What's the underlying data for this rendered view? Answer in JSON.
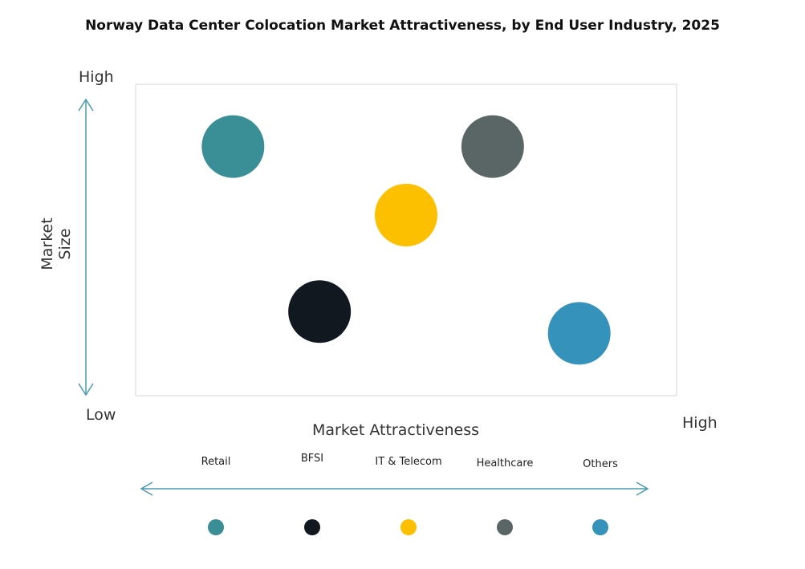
{
  "chart_data": {
    "type": "scatter",
    "title": "Norway Data Center Colocation Market Attractiveness,  by End User Industry, 2025",
    "xlabel": "Market Attractiveness",
    "ylabel": "Market Size",
    "x_low_label": "Low",
    "x_high_label": "High",
    "y_high_label": "High",
    "xlim": [
      0,
      100
    ],
    "ylim": [
      0,
      100
    ],
    "grid": false,
    "legend_position": "bottom",
    "series": [
      {
        "name": "Retail",
        "x": 18,
        "y": 80,
        "color": "#3a8f96"
      },
      {
        "name": "BFSI",
        "x": 34,
        "y": 27,
        "color": "#111820"
      },
      {
        "name": "IT & Telecom",
        "x": 50,
        "y": 58,
        "color": "#fcc000"
      },
      {
        "name": "Healthcare",
        "x": 66,
        "y": 80,
        "color": "#5a6566"
      },
      {
        "name": "Others",
        "x": 82,
        "y": 20,
        "color": "#3593bb"
      }
    ],
    "axis_color": "#4a9bb0"
  }
}
